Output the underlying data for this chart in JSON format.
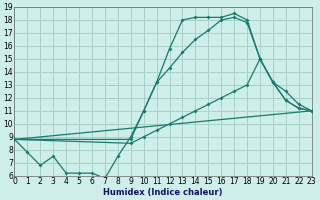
{
  "xlabel": "Humidex (Indice chaleur)",
  "bg_color": "#cdeee9",
  "grid_color": "#aacfc9",
  "line_color": "#1a7a6e",
  "xlim": [
    0,
    23
  ],
  "ylim": [
    6,
    19
  ],
  "xticks": [
    0,
    1,
    2,
    3,
    4,
    5,
    6,
    7,
    8,
    9,
    10,
    11,
    12,
    13,
    14,
    15,
    16,
    17,
    18,
    19,
    20,
    21,
    22,
    23
  ],
  "yticks": [
    6,
    7,
    8,
    9,
    10,
    11,
    12,
    13,
    14,
    15,
    16,
    17,
    18,
    19
  ],
  "line1_x": [
    0,
    1,
    2,
    3,
    4,
    5,
    6,
    7,
    8,
    9,
    10,
    11,
    12,
    13,
    14,
    15,
    16,
    17,
    18,
    19,
    20,
    21,
    22,
    23
  ],
  "line1_y": [
    8.8,
    7.8,
    6.8,
    7.5,
    6.2,
    6.2,
    6.2,
    5.8,
    7.5,
    9.0,
    11.0,
    13.2,
    15.8,
    18.0,
    18.2,
    18.2,
    18.2,
    18.5,
    18.0,
    15.0,
    13.2,
    11.8,
    11.2,
    11.0
  ],
  "line2_x": [
    0,
    9,
    10,
    11,
    12,
    13,
    14,
    15,
    16,
    17,
    18,
    19,
    20,
    21,
    22,
    23
  ],
  "line2_y": [
    8.8,
    8.8,
    11.0,
    13.2,
    14.3,
    15.5,
    16.5,
    17.2,
    18.0,
    18.2,
    17.8,
    15.0,
    13.2,
    11.8,
    11.2,
    11.0
  ],
  "line3_x": [
    0,
    9,
    10,
    11,
    12,
    13,
    14,
    15,
    16,
    17,
    18,
    19,
    20,
    21,
    22,
    23
  ],
  "line3_y": [
    8.8,
    8.5,
    9.0,
    9.5,
    10.0,
    10.5,
    11.0,
    11.5,
    12.0,
    12.5,
    13.0,
    15.0,
    13.2,
    12.5,
    11.5,
    11.0
  ],
  "line4_x": [
    0,
    23
  ],
  "line4_y": [
    8.8,
    11.0
  ]
}
